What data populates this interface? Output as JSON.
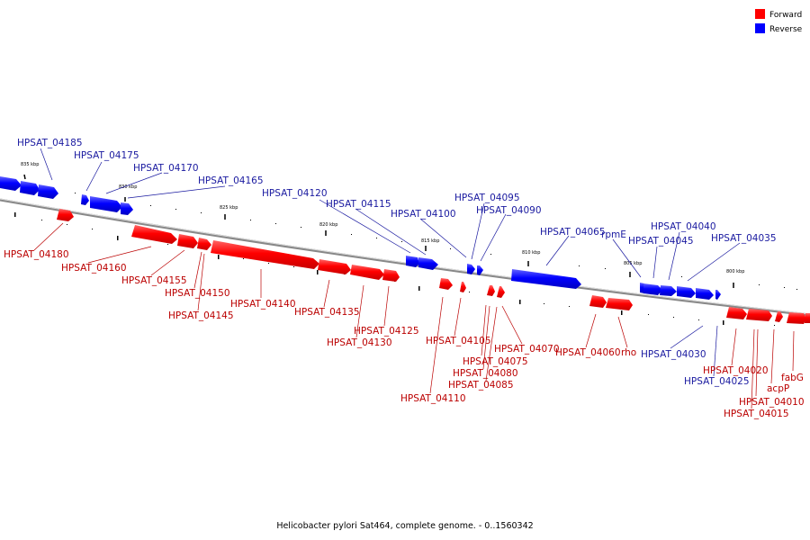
{
  "caption": "Helicobacter pylori Sat464, complete genome. - 0..1560342",
  "legend": {
    "forward": {
      "label": "Forward",
      "color": "#ff0000"
    },
    "reverse": {
      "label": "Reverse",
      "color": "#0000ff"
    }
  },
  "colors": {
    "forward_label": "#bb0000",
    "reverse_label": "#1a1aa0",
    "backbone": "#888888"
  },
  "ticks": [
    "835 kbp",
    "830 kbp",
    "825 kbp",
    "820 kbp",
    "815 kbp",
    "810 kbp",
    "805 kbp",
    "800 kbp"
  ],
  "genes": {
    "reverse": [
      "HPSAT_04185",
      "HPSAT_04175",
      "HPSAT_04170",
      "HPSAT_04165",
      "HPSAT_04120",
      "HPSAT_04115",
      "HPSAT_04100",
      "HPSAT_04095",
      "HPSAT_04090",
      "HPSAT_04065",
      "rpmE",
      "HPSAT_04045",
      "HPSAT_04040",
      "HPSAT_04035",
      "HPSAT_04030",
      "HPSAT_04025"
    ],
    "forward": [
      "HPSAT_04180",
      "HPSAT_04160",
      "HPSAT_04155",
      "HPSAT_04150",
      "HPSAT_04145",
      "HPSAT_04140",
      "HPSAT_04135",
      "HPSAT_04130",
      "HPSAT_04125",
      "HPSAT_04105",
      "HPSAT_04110",
      "HPSAT_04075",
      "HPSAT_04080",
      "HPSAT_04085",
      "HPSAT_04070",
      "HPSAT_04060",
      "rho",
      "HPSAT_04020",
      "HPSAT_04010",
      "HPSAT_04015",
      "acpP",
      "fabG"
    ]
  }
}
